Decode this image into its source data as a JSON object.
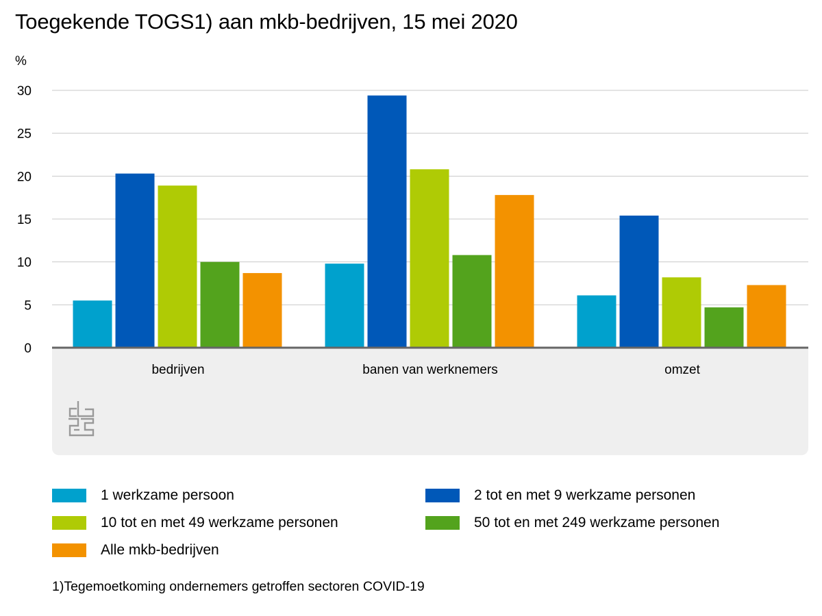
{
  "title": "Toegekende TOGS1) aan mkb-bedrijven, 15 mei 2020",
  "footnote": "1)Tegemoetkoming ondernemers getroffen sectoren COVID-19",
  "logo": "cbs-logo",
  "chart_data": {
    "type": "bar",
    "title": "Toegekende TOGS1) aan mkb-bedrijven, 15 mei 2020",
    "ylabel": "%",
    "xlabel": "",
    "ylim": [
      0,
      30
    ],
    "yticks": [
      0,
      5,
      10,
      15,
      20,
      25,
      30
    ],
    "grid": true,
    "legend_position": "bottom",
    "categories": [
      "bedrijven",
      "banen van werknemers",
      "omzet"
    ],
    "series": [
      {
        "name": "1 werkzame persoon",
        "color": "#00a1cd",
        "values": [
          5.5,
          9.8,
          6.1
        ]
      },
      {
        "name": "2 tot en met 9 werkzame personen",
        "color": "#0058b8",
        "values": [
          20.3,
          29.4,
          15.4
        ]
      },
      {
        "name": "10 tot en met 49 werkzame personen",
        "color": "#afcb05",
        "values": [
          18.9,
          20.8,
          8.2
        ]
      },
      {
        "name": "50 tot en met 249 werkzame personen",
        "color": "#53a31d",
        "values": [
          10.0,
          10.8,
          4.7
        ]
      },
      {
        "name": "Alle mkb-bedrijven",
        "color": "#f39200",
        "values": [
          8.7,
          17.8,
          7.3
        ]
      }
    ]
  }
}
